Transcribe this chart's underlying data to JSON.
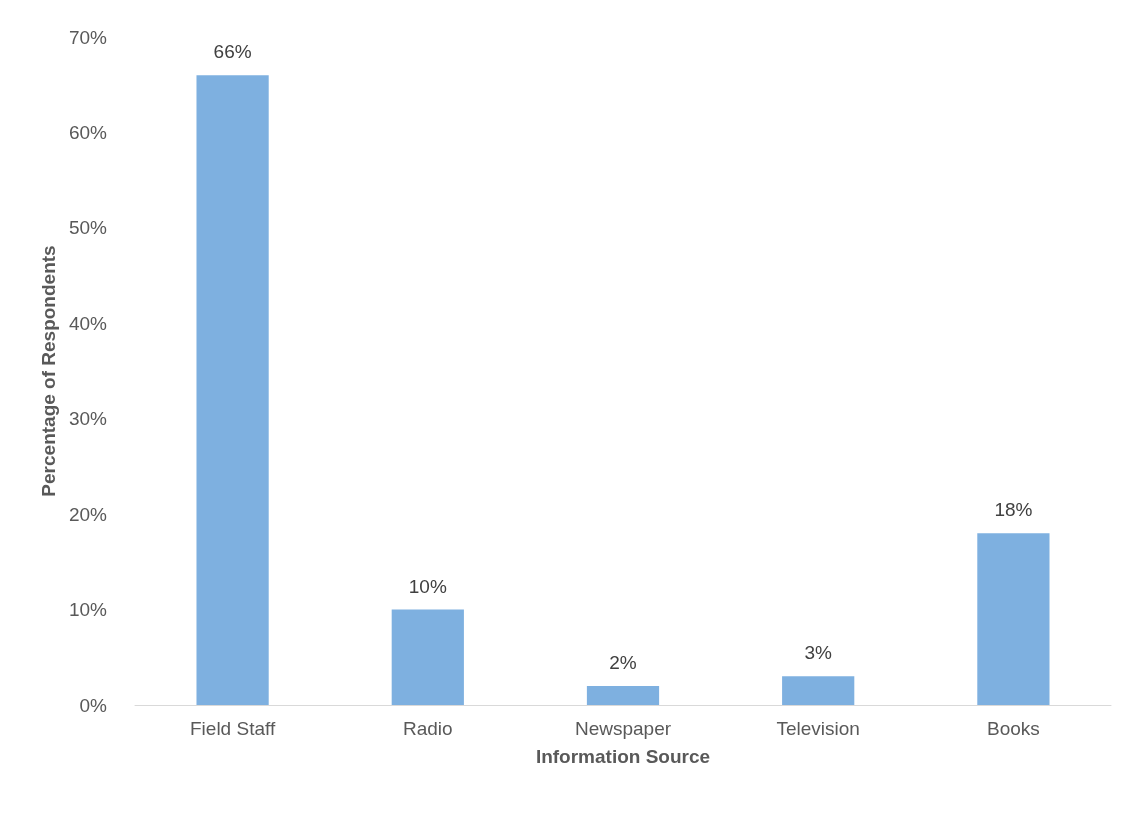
{
  "chart_data": {
    "type": "bar",
    "xlabel": "Information Source",
    "ylabel": "Percentage of Respondents",
    "categories": [
      "Field Staff",
      "Radio",
      "Newspaper",
      "Television",
      "Books"
    ],
    "values": [
      66,
      10,
      2,
      3,
      18
    ],
    "value_labels": [
      "66%",
      "10%",
      "2%",
      "3%",
      "18%"
    ],
    "color": "#7eb0e0",
    "ylim": [
      0,
      70
    ],
    "yticks": [
      {
        "value": 0,
        "label": "0%"
      },
      {
        "value": 10,
        "label": "10%"
      },
      {
        "value": 20,
        "label": "20%"
      },
      {
        "value": 30,
        "label": "30%"
      },
      {
        "value": 40,
        "label": "40%"
      },
      {
        "value": 50,
        "label": "50%"
      },
      {
        "value": 60,
        "label": "60%"
      },
      {
        "value": 70,
        "label": "70%"
      }
    ],
    "grid": false
  }
}
